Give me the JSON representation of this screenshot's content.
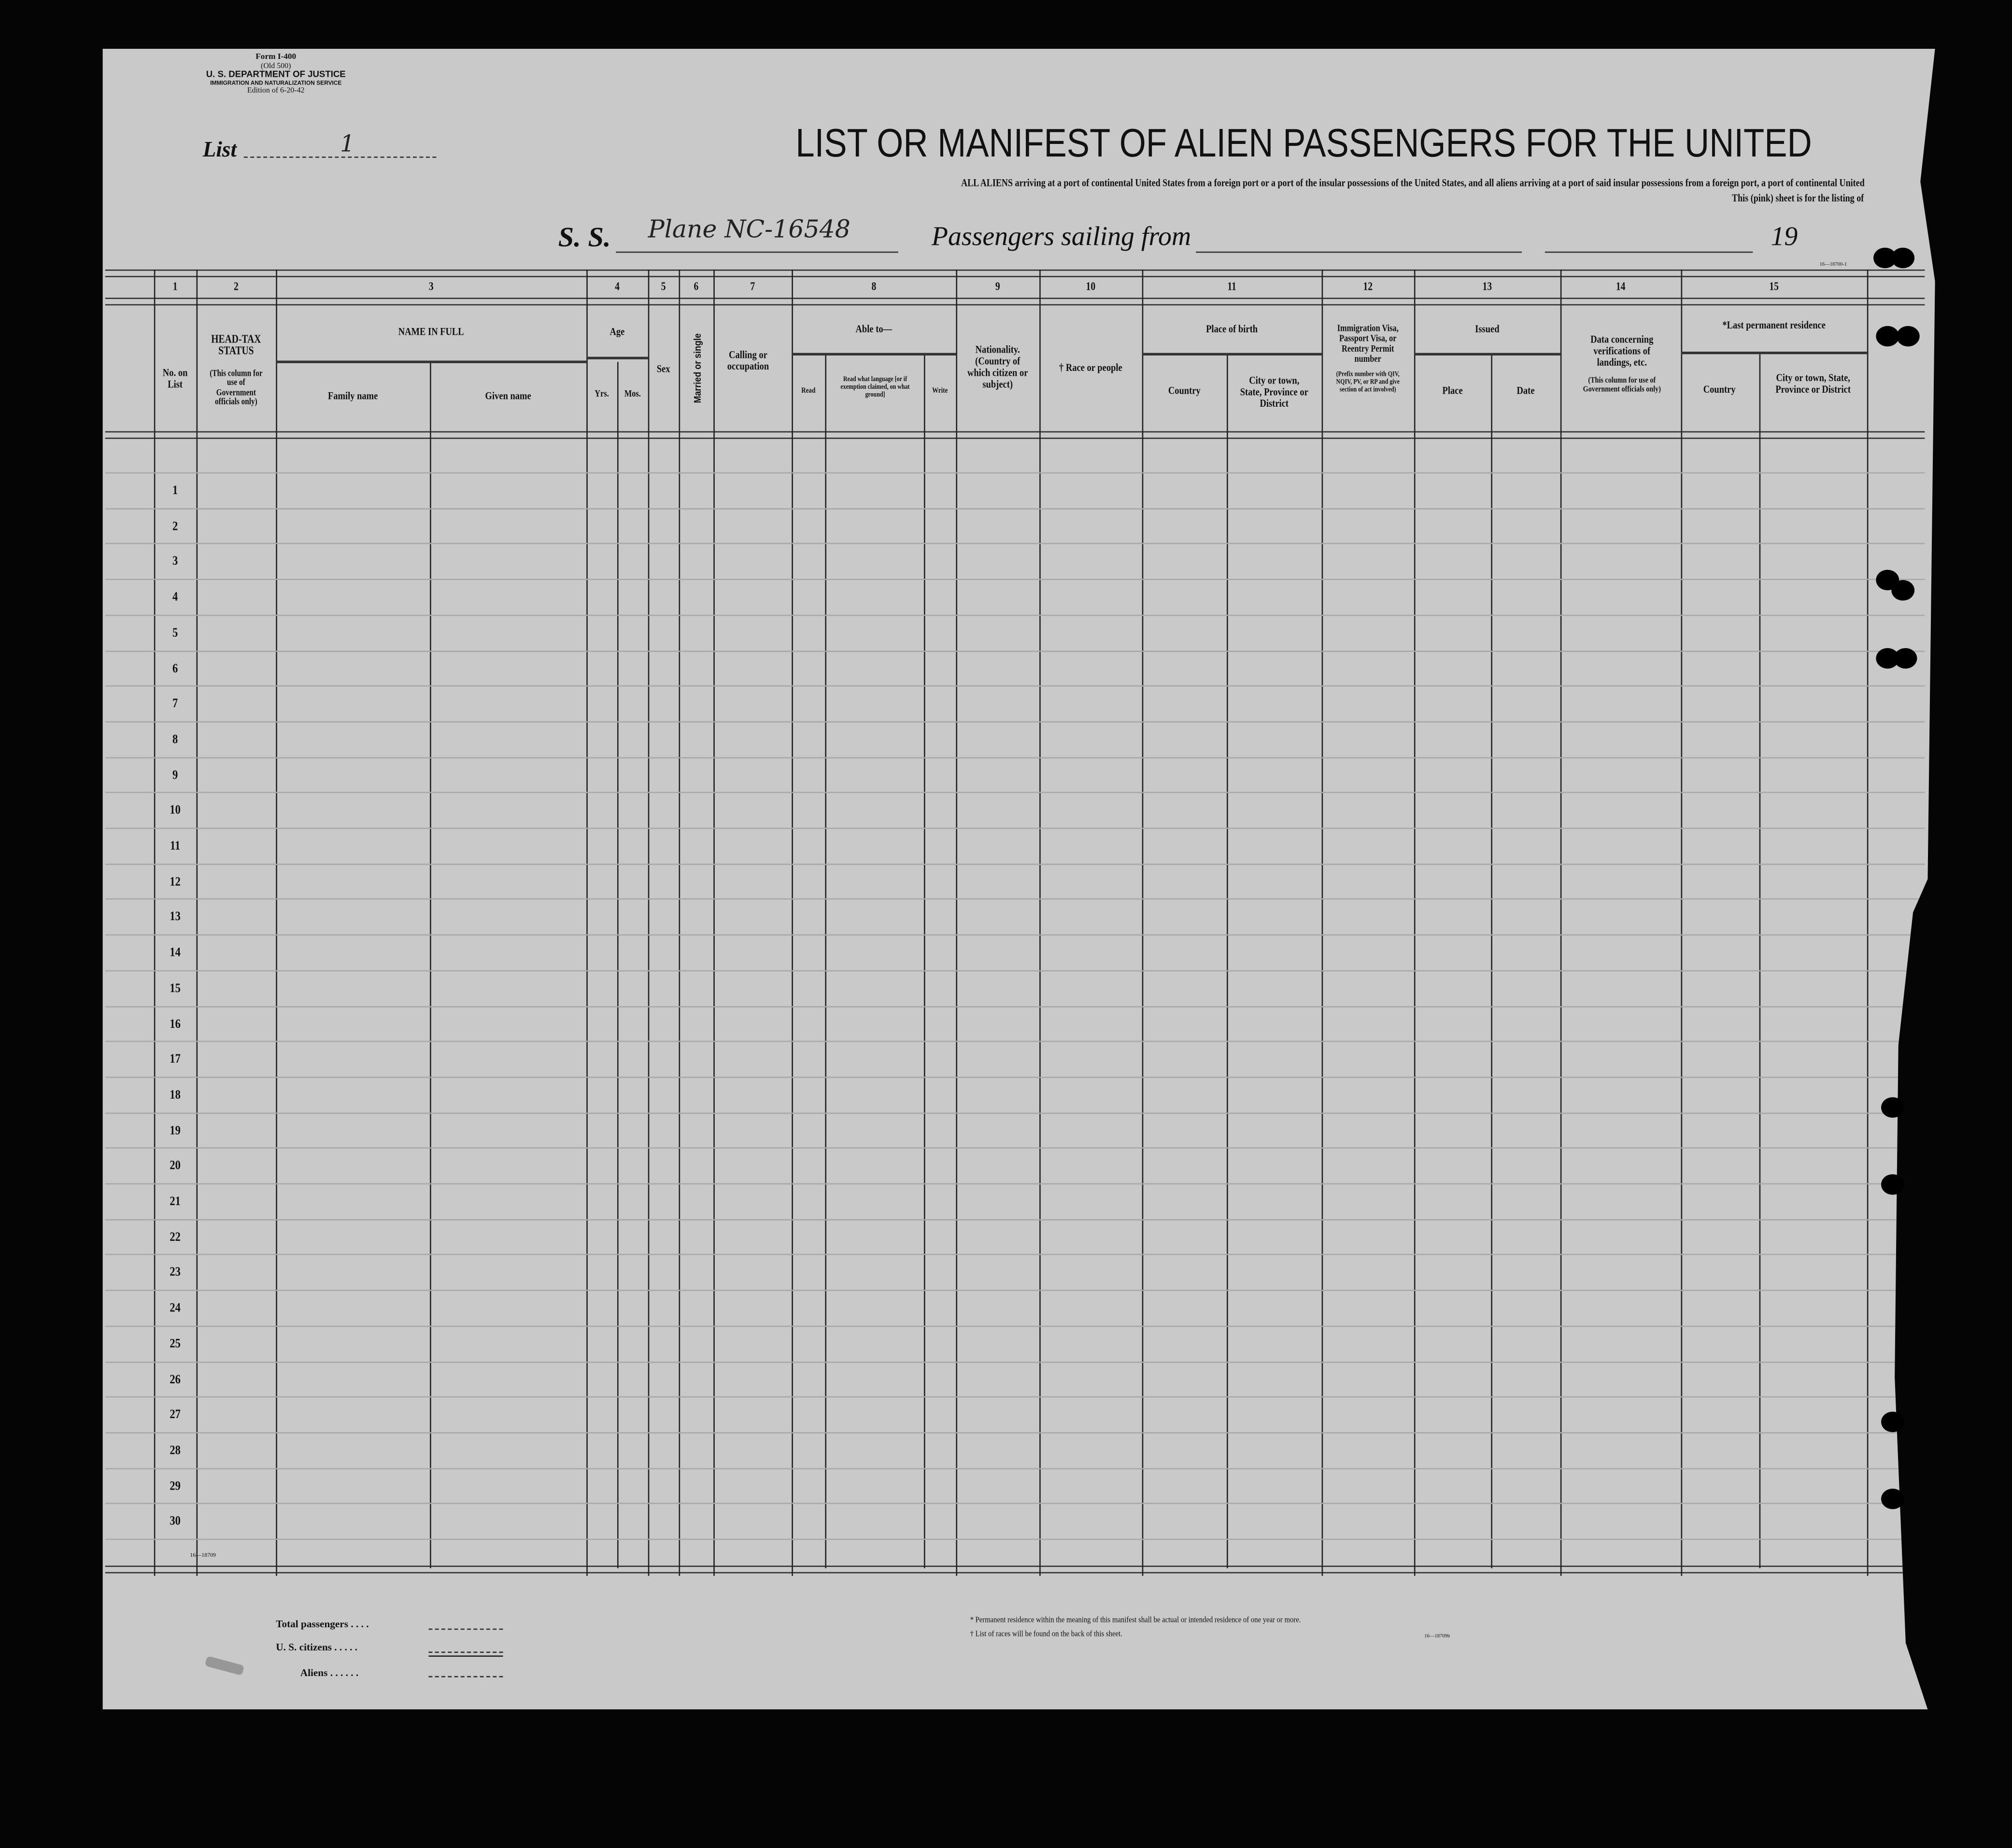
{
  "form_info": {
    "form_no": "Form I-400",
    "old": "(Old 500)",
    "department": "U. S. DEPARTMENT OF JUSTICE",
    "service": "IMMIGRATION AND NATURALIZATION SERVICE",
    "edition": "Edition of 6-20-42"
  },
  "list": {
    "label": "List",
    "value": "1"
  },
  "title": "LIST OR MANIFEST OF ALIEN PASSENGERS FOR THE UNITED",
  "subtitle": "ALL ALIENS arriving at a port of continental United States from a foreign port or a port of the insular possessions of the United States, and all aliens arriving at a port of said insular possessions from a foreign port, a port of continental United",
  "subtitle2": "This (pink) sheet is for the listing of",
  "vessel": {
    "prefix": "S. S.",
    "name": "Plane NC-16548",
    "sailing_label": "Passengers sailing from",
    "sailing_from": "",
    "date": "",
    "year_prefix": "19"
  },
  "print_code_top": "16—18700-1",
  "columns": {
    "numbers": [
      "1",
      "2",
      "3",
      "4",
      "5",
      "6",
      "7",
      "8",
      "9",
      "10",
      "11",
      "12",
      "13",
      "14",
      "15"
    ],
    "no_on_list": "No. on List",
    "head_tax": "HEAD-TAX STATUS",
    "head_tax_note": "(This column for use of Government officials only)",
    "name_in_full": "NAME IN FULL",
    "family_name": "Family name",
    "given_name": "Given name",
    "age": "Age",
    "yrs": "Yrs.",
    "mos": "Mos.",
    "sex": "Sex",
    "married": "Married or single",
    "calling": "Calling or occupation",
    "able_to": "Able to—",
    "read": "Read",
    "read_what": "Read what language [or if exemption claimed, on what ground]",
    "write": "Write",
    "nationality": "Nationality. (Country of which citizen or subject)",
    "race": "† Race or people",
    "place_of_birth": "Place of birth",
    "pob_country": "Country",
    "pob_city": "City or town, State, Province or District",
    "visa": "Immigration Visa, Passport Visa, or Reentry Permit number",
    "visa_note": "(Prefix number with QIV, NQIV, PV, or RP and give section of act involved)",
    "issued": "Issued",
    "issued_place": "Place",
    "issued_date": "Date",
    "data_concerning": "Data concerning verifications of landings, etc.",
    "data_note": "(This column for use of Government officials only)",
    "last_residence": "*Last permanent residence",
    "lr_country": "Country",
    "lr_city": "City or town, State, Province or District"
  },
  "rows": [
    "1",
    "2",
    "3",
    "4",
    "5",
    "6",
    "7",
    "8",
    "9",
    "10",
    "11",
    "12",
    "13",
    "14",
    "15",
    "16",
    "17",
    "18",
    "19",
    "20",
    "21",
    "22",
    "23",
    "24",
    "25",
    "26",
    "27",
    "28",
    "29",
    "30"
  ],
  "print_code_bottom": "16—18709",
  "totals": {
    "total_passengers": "Total passengers . . . .",
    "us_citizens": "U. S. citizens . . . . .",
    "aliens": "Aliens . . . . . ."
  },
  "footnotes": {
    "permanent": "* Permanent residence within the meaning of this manifest shall be actual or intended residence of one year or more.",
    "races": "† List of races will be found on the back of this sheet.",
    "code": "16—18709b"
  },
  "colors": {
    "paper": "#c9c9c9",
    "ink": "#111111",
    "background": "#000000"
  }
}
